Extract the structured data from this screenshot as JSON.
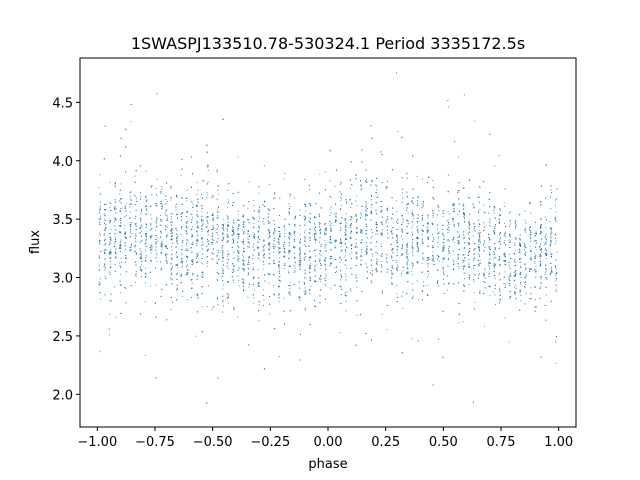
{
  "chart_data": {
    "type": "scatter",
    "title": "1SWASPJ133510.78-530324.1 Period 3335172.5s",
    "xlabel": "phase",
    "ylabel": "flux",
    "xlim": [
      -1.075,
      1.075
    ],
    "ylim": [
      1.72,
      4.88
    ],
    "xticks": [
      -1.0,
      -0.75,
      -0.5,
      -0.25,
      0.0,
      0.25,
      0.5,
      0.75,
      1.0
    ],
    "xtick_labels": [
      "−1.00",
      "−0.75",
      "−0.50",
      "−0.25",
      "0.00",
      "0.25",
      "0.50",
      "0.75",
      "1.00"
    ],
    "yticks": [
      2.0,
      2.5,
      3.0,
      3.5,
      4.0,
      4.5
    ],
    "ytick_labels": [
      "2.0",
      "2.5",
      "3.0",
      "3.5",
      "4.0",
      "4.5"
    ],
    "point_color": "#1f77b4",
    "grid": false,
    "legend": "none",
    "series": [
      {
        "x_range": [
          -1.0,
          1.0
        ],
        "x_period": 1.0,
        "profile": [
          {
            "x": -1.0,
            "y_median": 3.28,
            "y_spread": 0.24
          },
          {
            "x": -0.9,
            "y_median": 3.35,
            "y_spread": 0.26
          },
          {
            "x": -0.75,
            "y_median": 3.34,
            "y_spread": 0.25
          },
          {
            "x": -0.6,
            "y_median": 3.3,
            "y_spread": 0.24
          },
          {
            "x": -0.5,
            "y_median": 3.32,
            "y_spread": 0.25
          },
          {
            "x": -0.35,
            "y_median": 3.25,
            "y_spread": 0.22
          },
          {
            "x": -0.25,
            "y_median": 3.22,
            "y_spread": 0.22
          },
          {
            "x": -0.15,
            "y_median": 3.2,
            "y_spread": 0.22
          },
          {
            "x": 0.0,
            "y_median": 3.28,
            "y_spread": 0.24
          },
          {
            "x": 0.1,
            "y_median": 3.35,
            "y_spread": 0.26
          },
          {
            "x": 0.25,
            "y_median": 3.34,
            "y_spread": 0.25
          },
          {
            "x": 0.4,
            "y_median": 3.3,
            "y_spread": 0.24
          },
          {
            "x": 0.5,
            "y_median": 3.32,
            "y_spread": 0.25
          },
          {
            "x": 0.65,
            "y_median": 3.25,
            "y_spread": 0.22
          },
          {
            "x": 0.75,
            "y_median": 3.22,
            "y_spread": 0.22
          },
          {
            "x": 0.85,
            "y_median": 3.2,
            "y_spread": 0.22
          },
          {
            "x": 1.0,
            "y_median": 3.28,
            "y_spread": 0.24
          }
        ],
        "y_min": 1.85,
        "y_max": 4.78
      }
    ]
  }
}
